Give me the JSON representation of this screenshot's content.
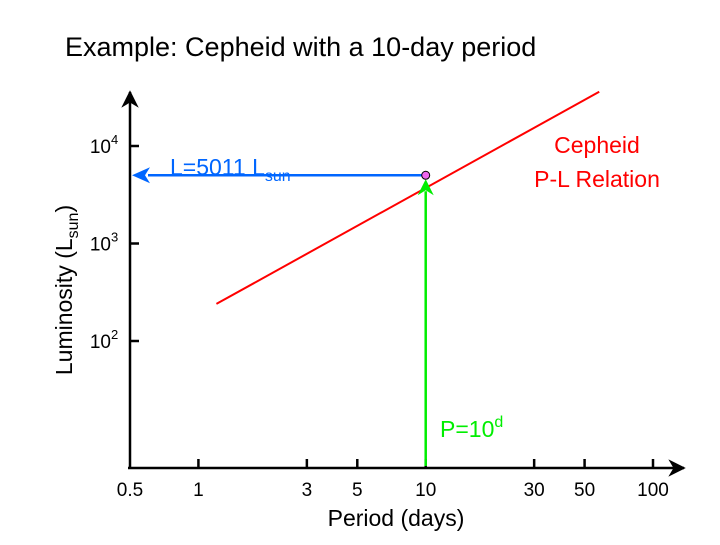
{
  "chart_data": {
    "type": "line",
    "title": "Example: Cepheid with a 10-day period",
    "xlabel": "Period (days)",
    "ylabel": {
      "main": "Luminosity (L",
      "sub": "sun",
      "end": ")"
    },
    "x_scale": "log",
    "y_scale": "log",
    "xlim": [
      0.5,
      120
    ],
    "ylim": [
      10,
      40000
    ],
    "x_ticks": [
      {
        "value": 0.5,
        "label": "0.5"
      },
      {
        "value": 1,
        "label": "1"
      },
      {
        "value": 3,
        "label": "3"
      },
      {
        "value": 5,
        "label": "5"
      },
      {
        "value": 10,
        "label": "10"
      },
      {
        "value": 30,
        "label": "30"
      },
      {
        "value": 50,
        "label": "50"
      },
      {
        "value": 100,
        "label": "100"
      }
    ],
    "y_ticks": [
      {
        "value": 100,
        "base": "10",
        "exp": "2"
      },
      {
        "value": 1000,
        "base": "10",
        "exp": "3"
      },
      {
        "value": 10000,
        "base": "10",
        "exp": "4"
      }
    ],
    "grid": false,
    "series": [
      {
        "name": "Cepheid P-L Relation",
        "color": "#ff0000",
        "points": [
          {
            "x": 1.2,
            "y": 240
          },
          {
            "x": 58,
            "y": 36000
          }
        ]
      }
    ],
    "series_label": [
      "Cepheid",
      "P-L Relation"
    ],
    "highlight_point": {
      "x": 10,
      "y": 5011,
      "color": "#ee66ee"
    },
    "annotations": {
      "luminosity": {
        "main": "L=5011 L",
        "sub": "sun",
        "value": 5011,
        "color": "#0066ff"
      },
      "period": {
        "main": "P=10",
        "sup": "d",
        "value": 10,
        "color": "#00ee00"
      }
    },
    "axis_color": "#000000"
  }
}
